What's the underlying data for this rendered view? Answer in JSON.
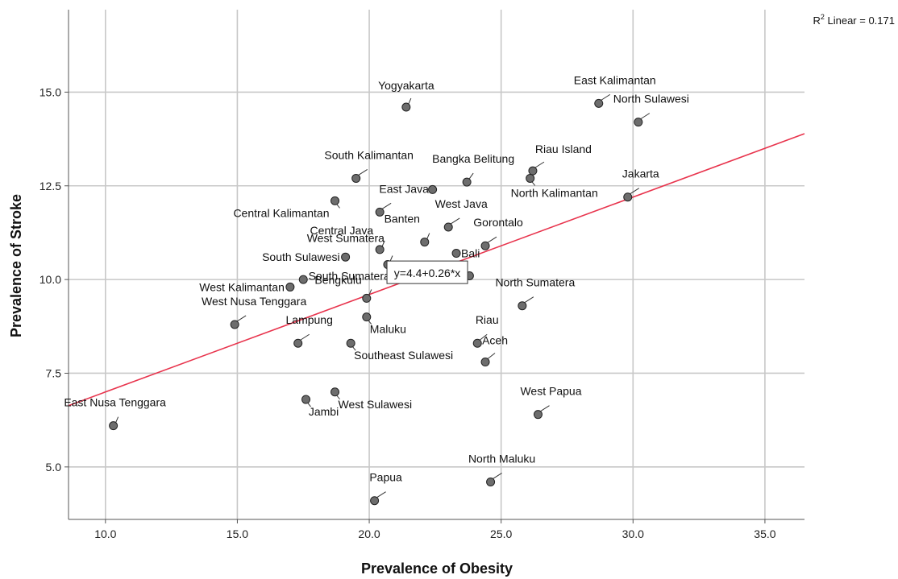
{
  "chart_data": {
    "type": "scatter",
    "title": "",
    "xlabel": "Prevalence of Obesity",
    "ylabel": "Prevalence of Stroke",
    "xlim": [
      8.6,
      36.5
    ],
    "ylim": [
      3.6,
      17.2
    ],
    "xticks": [
      "10.0",
      "15.0",
      "20.0",
      "25.0",
      "30.0",
      "35.0"
    ],
    "yticks": [
      "5.0",
      "7.5",
      "10.0",
      "12.5",
      "15.0"
    ],
    "grid": true,
    "r2_label": "R",
    "r2_sup": "2",
    "r2_text": " Linear = 0.171",
    "fit": {
      "intercept": 4.4,
      "slope": 0.26,
      "equation": "y=4.4+0.26*x"
    },
    "points": [
      {
        "name": "Yogyakarta",
        "x": 21.4,
        "y": 14.6
      },
      {
        "name": "East Kalimantan",
        "x": 28.7,
        "y": 14.7
      },
      {
        "name": "North Sulawesi",
        "x": 30.2,
        "y": 14.2
      },
      {
        "name": "South Kalimantan",
        "x": 19.5,
        "y": 12.7
      },
      {
        "name": "Bangka Belitung",
        "x": 23.7,
        "y": 12.6
      },
      {
        "name": "Riau Island",
        "x": 26.2,
        "y": 12.9
      },
      {
        "name": "North Kalimantan",
        "x": 26.1,
        "y": 12.7
      },
      {
        "name": "",
        "x": 22.4,
        "y": 12.4
      },
      {
        "name": "Jakarta",
        "x": 29.8,
        "y": 12.2
      },
      {
        "name": "Central Kalimantan",
        "x": 18.7,
        "y": 12.1
      },
      {
        "name": "East Java",
        "x": 20.4,
        "y": 11.8
      },
      {
        "name": "West Java",
        "x": 23.0,
        "y": 11.4
      },
      {
        "name": "Central Java",
        "x": 20.4,
        "y": 10.8
      },
      {
        "name": "Banten",
        "x": 22.1,
        "y": 11.0
      },
      {
        "name": "Gorontalo",
        "x": 24.4,
        "y": 10.9
      },
      {
        "name": "West Sumatera",
        "x": 20.7,
        "y": 10.4
      },
      {
        "name": "Bali",
        "x": 23.3,
        "y": 10.7
      },
      {
        "name": "South Sulawesi",
        "x": 19.1,
        "y": 10.6
      },
      {
        "name": "South Sumatera",
        "x": 21.0,
        "y": 10.1
      },
      {
        "name": "",
        "x": 23.8,
        "y": 10.1
      },
      {
        "name": "West Kalimantan",
        "x": 17.0,
        "y": 9.8
      },
      {
        "name": "",
        "x": 17.5,
        "y": 10.0
      },
      {
        "name": "Bengkulu",
        "x": 19.9,
        "y": 9.5
      },
      {
        "name": "North Sumatera",
        "x": 25.8,
        "y": 9.3
      },
      {
        "name": "West Nusa Tenggara",
        "x": 14.9,
        "y": 8.8
      },
      {
        "name": "Maluku",
        "x": 19.9,
        "y": 9.0
      },
      {
        "name": "Lampung",
        "x": 17.3,
        "y": 8.3
      },
      {
        "name": "Southeast Sulawesi",
        "x": 19.3,
        "y": 8.3
      },
      {
        "name": "Riau",
        "x": 24.1,
        "y": 8.3
      },
      {
        "name": "Aceh",
        "x": 24.4,
        "y": 7.8
      },
      {
        "name": "West Sulawesi",
        "x": 18.7,
        "y": 7.0
      },
      {
        "name": "Jambi",
        "x": 17.6,
        "y": 6.8
      },
      {
        "name": "West Papua",
        "x": 26.4,
        "y": 6.4
      },
      {
        "name": "East Nusa Tenggara",
        "x": 10.3,
        "y": 6.1
      },
      {
        "name": "North Maluku",
        "x": 24.6,
        "y": 4.6
      },
      {
        "name": "Papua",
        "x": 20.2,
        "y": 4.1
      }
    ]
  }
}
